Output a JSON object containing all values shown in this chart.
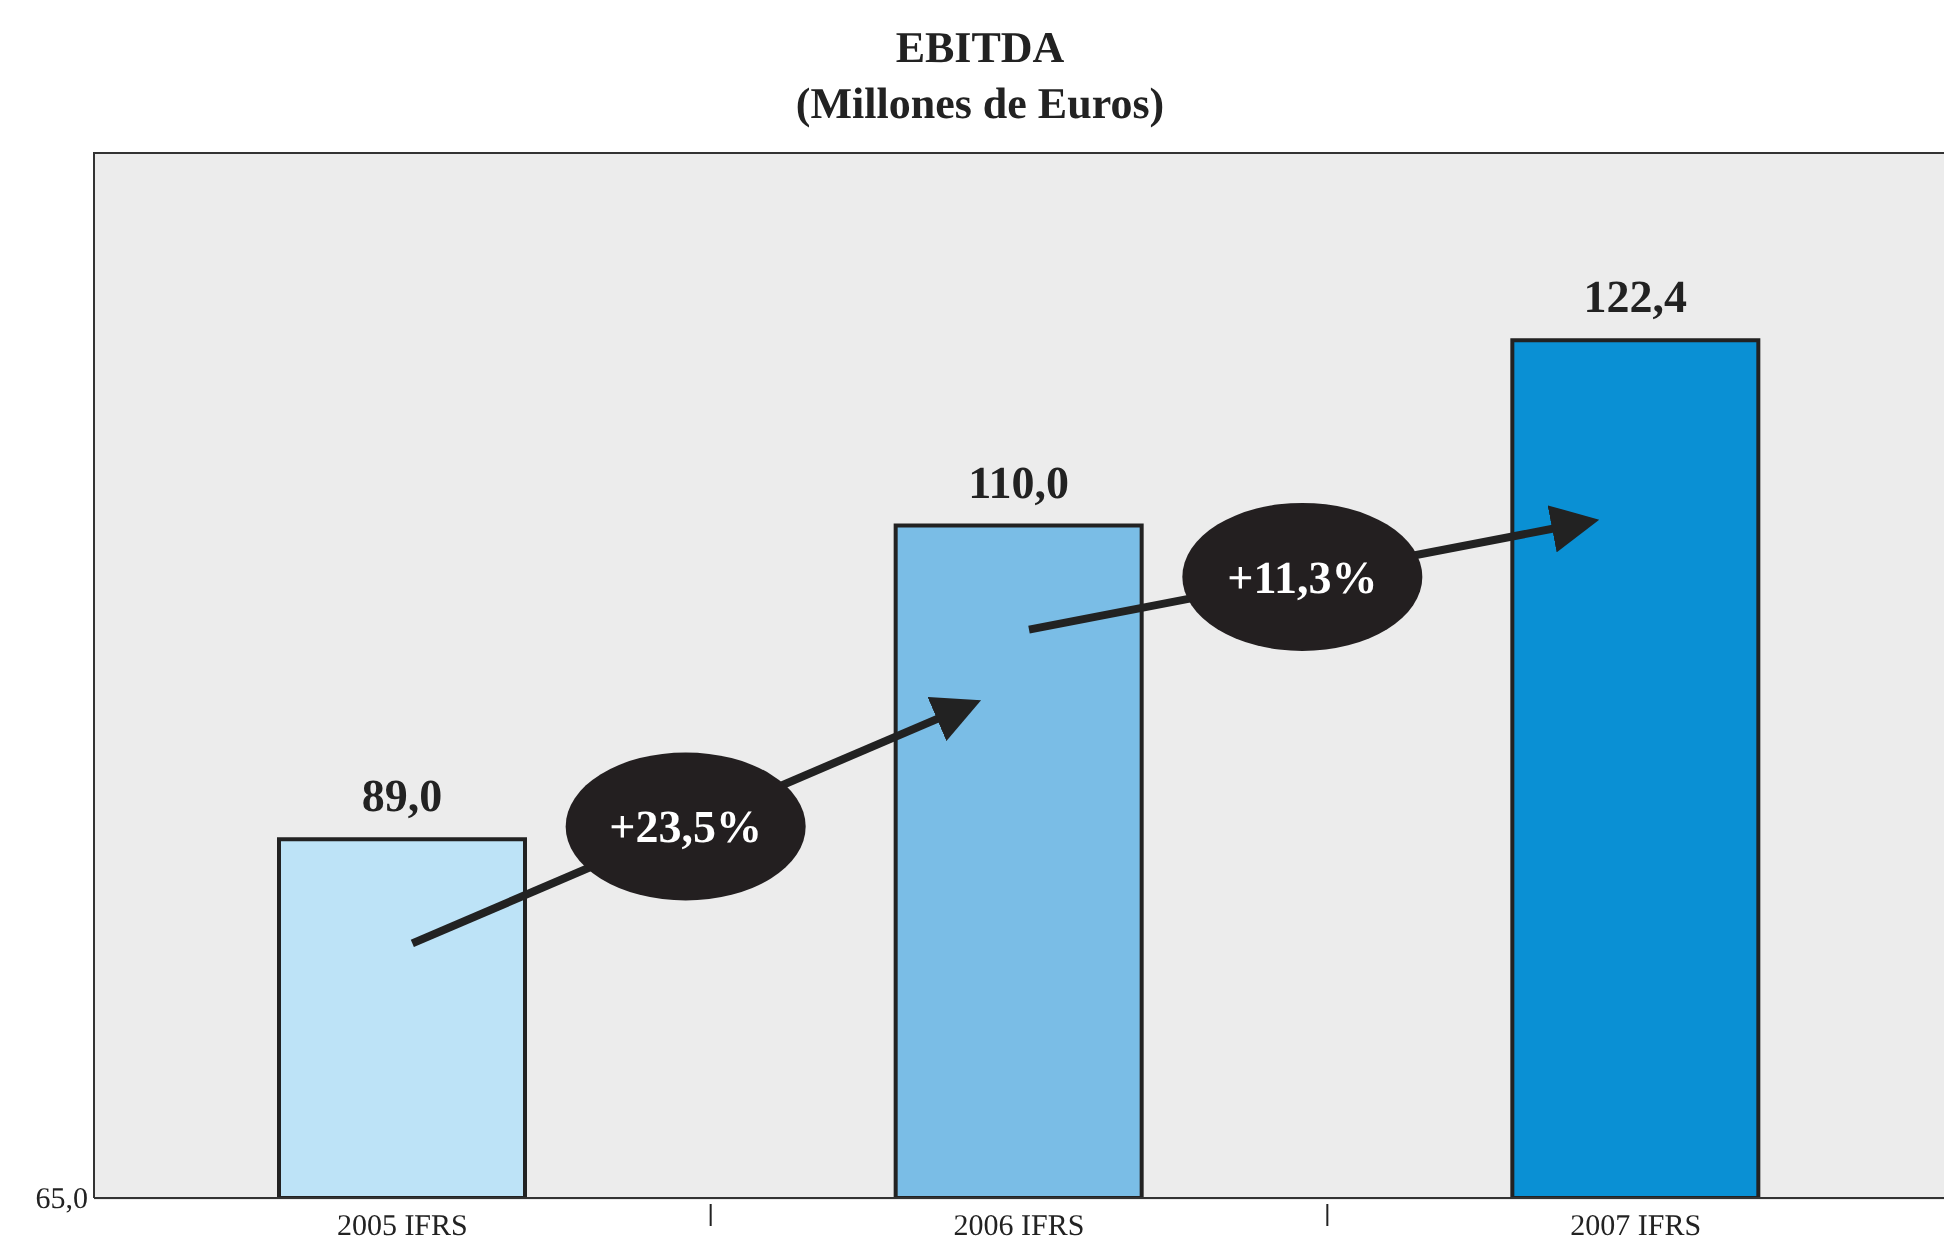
{
  "chart_data": {
    "type": "bar",
    "title": "EBITDA",
    "subtitle": "(Millones de Euros)",
    "categories": [
      "2005 IFRS",
      "2006 IFRS",
      "2007 IFRS"
    ],
    "values": [
      89.0,
      110.0,
      122.4
    ],
    "colors": [
      "#bde3f7",
      "#7abde6",
      "#0a90d4"
    ],
    "value_labels": [
      "89,0",
      "110,0",
      "122,4"
    ],
    "ylim": [
      65,
      135
    ],
    "annotations": [
      "+23,5%",
      "+11,3%",
      "65,0"
    ],
    "grid": false,
    "legend": false
  }
}
